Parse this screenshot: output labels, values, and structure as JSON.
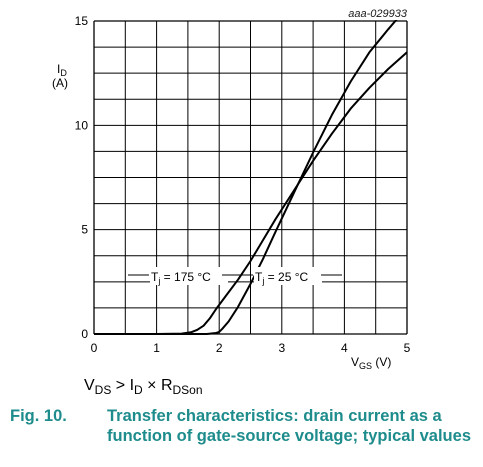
{
  "document_id": "aaa-029933",
  "colors": {
    "line": "#000000",
    "caption": "#1e8c8c",
    "grid": "#000000"
  },
  "chart_data": {
    "type": "line",
    "xlim": [
      0,
      5
    ],
    "ylim": [
      0,
      15
    ],
    "x_ticks": [
      "0",
      "1",
      "2",
      "3",
      "4",
      "5"
    ],
    "y_ticks": [
      "0",
      "5",
      "10",
      "15"
    ],
    "x_tick_values": [
      0,
      1,
      2,
      3,
      4,
      5
    ],
    "y_tick_values": [
      0,
      5,
      10,
      15
    ],
    "grid": true,
    "ylabel_main": "I",
    "ylabel_sub": "D",
    "ylabel_unit": "(A)",
    "xlabel_main": "V",
    "xlabel_sub": "GS",
    "xlabel_unit": " (V)",
    "series": [
      {
        "name_prefix": "T",
        "name_sub": "j",
        "name_suffix": " = 175 °C",
        "x": [
          0,
          1.0,
          1.4,
          1.55,
          1.65,
          1.75,
          1.85,
          1.95,
          2.1,
          2.3,
          2.5,
          2.7,
          2.9,
          3.2,
          3.5,
          3.8,
          4.1,
          4.4,
          4.7,
          5.0
        ],
        "y": [
          0,
          0,
          0.02,
          0.08,
          0.2,
          0.4,
          0.75,
          1.2,
          1.8,
          2.6,
          3.5,
          4.5,
          5.5,
          6.9,
          8.3,
          9.6,
          10.8,
          11.8,
          12.7,
          13.5
        ]
      },
      {
        "name_prefix": "T",
        "name_sub": "j",
        "name_suffix": " = 25 °C",
        "x": [
          0,
          1.8,
          1.95,
          2.0,
          2.05,
          2.15,
          2.3,
          2.5,
          2.7,
          2.9,
          3.2,
          3.5,
          3.8,
          4.1,
          4.4,
          4.7,
          4.9
        ],
        "y": [
          0,
          0,
          0.05,
          0.1,
          0.25,
          0.6,
          1.3,
          2.4,
          3.6,
          4.9,
          6.8,
          8.7,
          10.5,
          12.1,
          13.5,
          14.6,
          15.3
        ]
      }
    ]
  },
  "condition": {
    "v": "V",
    "v_sub": "DS",
    "gt": " > I",
    "i_sub": "D",
    "times": " × R",
    "r_sub": "DSon"
  },
  "caption": {
    "number": "Fig. 10.",
    "text": "Transfer characteristics: drain current as a function of gate-source voltage; typical values"
  }
}
